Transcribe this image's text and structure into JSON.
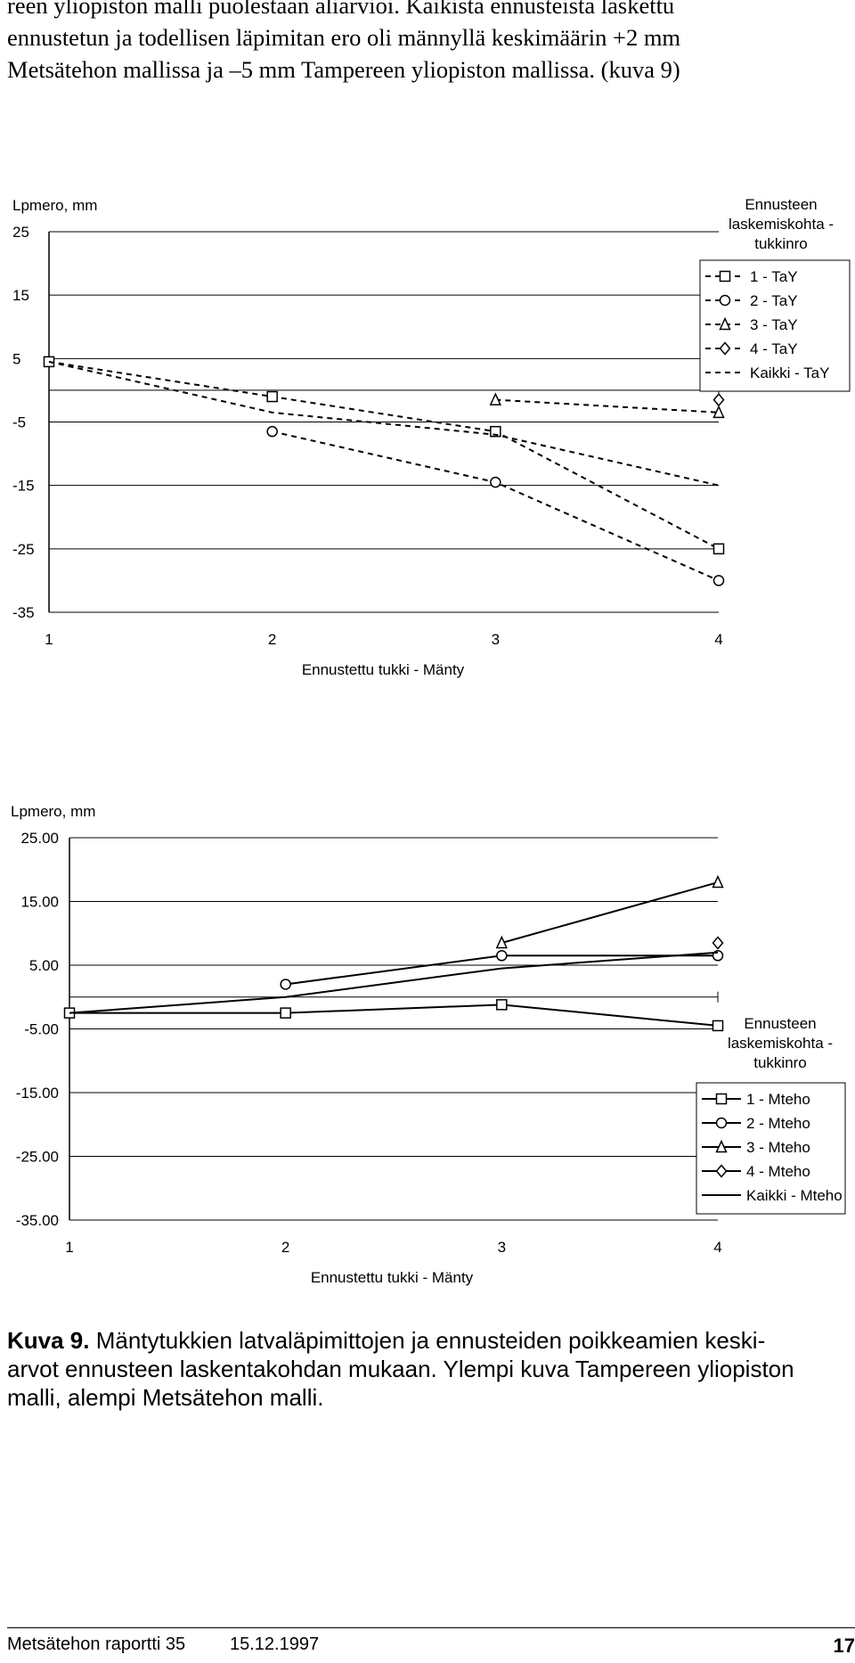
{
  "body_text": {
    "lines": [
      "reen yliopiston malli puolestaan aliarvioi. Kaikista ennusteista laskettu",
      "ennustetun ja todellisen läpimitan ero oli männyllä keskimäärin +2 mm",
      "Metsätehon mallissa ja –5 mm Tampereen yliopiston mallissa. (kuva 9)"
    ]
  },
  "chart_data": [
    {
      "type": "line",
      "title": "",
      "ylabel": "Lpmero, mm",
      "xlabel": "Ennustettu tukki - Mänty",
      "categories": [
        "1",
        "2",
        "3",
        "4"
      ],
      "yticks": [
        "25",
        "15",
        "5",
        "-5",
        "-15",
        "-25",
        "-35"
      ],
      "ylim": [
        -35,
        25
      ],
      "grid": true,
      "line_style": "dashed",
      "legend_title": [
        "Ennusteen",
        "laskemiskohta -",
        "tukkinro"
      ],
      "legend_position": "top-right",
      "series": [
        {
          "name": "1 - TaY",
          "marker": "square",
          "x": [
            1,
            2,
            3,
            4
          ],
          "values": [
            4.5,
            -1,
            -6.5,
            -25
          ]
        },
        {
          "name": "2 - TaY",
          "marker": "circle",
          "x": [
            2,
            3,
            4
          ],
          "values": [
            -6.5,
            -14.5,
            -30
          ]
        },
        {
          "name": "3 - TaY",
          "marker": "triangle",
          "x": [
            3,
            4
          ],
          "values": [
            -1.5,
            -3.5
          ]
        },
        {
          "name": "4 - TaY",
          "marker": "diamond",
          "x": [
            4
          ],
          "values": [
            -1.5
          ]
        },
        {
          "name": "Kaikki  - TaY",
          "marker": "none",
          "x": [
            1,
            2,
            3,
            4
          ],
          "values": [
            4.5,
            -3.5,
            -7,
            -15
          ]
        }
      ]
    },
    {
      "type": "line",
      "title": "",
      "ylabel": "Lpmero, mm",
      "xlabel": "Ennustettu tukki - Mänty",
      "categories": [
        "1",
        "2",
        "3",
        "4"
      ],
      "yticks": [
        "25.00",
        "15.00",
        "5.00",
        "-5.00",
        "-15.00",
        "-25.00",
        "-35.00"
      ],
      "ylim": [
        -35,
        25
      ],
      "grid": true,
      "line_style": "solid",
      "legend_title": [
        "Ennusteen",
        "laskemiskohta -",
        "tukkinro"
      ],
      "legend_position": "right",
      "series": [
        {
          "name": "1 - Mteho",
          "marker": "square",
          "x": [
            1,
            2,
            3,
            4
          ],
          "values": [
            -2.5,
            -2.5,
            -1.2,
            -4.5
          ]
        },
        {
          "name": "2 - Mteho",
          "marker": "circle",
          "x": [
            2,
            3,
            4
          ],
          "values": [
            2,
            6.5,
            6.5
          ]
        },
        {
          "name": "3 - Mteho",
          "marker": "triangle",
          "x": [
            3,
            4
          ],
          "values": [
            8.5,
            18
          ]
        },
        {
          "name": "4 - Mteho",
          "marker": "diamond",
          "x": [
            4
          ],
          "values": [
            8.5
          ]
        },
        {
          "name": "Kaikki - Mteho",
          "marker": "none",
          "x": [
            1,
            2,
            3,
            4
          ],
          "values": [
            -2.5,
            0,
            4.5,
            7
          ]
        }
      ]
    }
  ],
  "caption": {
    "label": "Kuva 9.",
    "line1": " Mäntytukkien latvaläpimittojen ja ennusteiden poikkeamien keski-",
    "line2": "arvot ennusteen laskentakohdan mukaan. Ylempi kuva Tampereen yliopiston",
    "line3": "malli, alempi Metsätehon malli."
  },
  "footer": {
    "report": "Metsätehon raportti 35",
    "date": "15.12.1997",
    "page": "17"
  }
}
